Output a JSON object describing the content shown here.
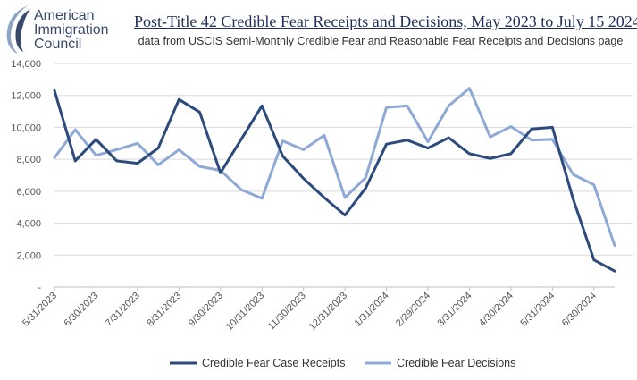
{
  "logo": {
    "name": "American Immigration Council",
    "line1": "American",
    "line2": "Immigration",
    "line3": "Council",
    "color": "#3a4a6e"
  },
  "chart_data": {
    "type": "line",
    "title": "Post-Title 42 Credible Fear Receipts and Decisions, May 2023 to July 15 2024",
    "subtitle": "data from USCIS Semi-Monthly Credible Fear and Reasonable Fear Receipts and Decisions page",
    "xlabel": "",
    "ylabel": "",
    "ylim": [
      0,
      14000
    ],
    "yticks": [
      0,
      2000,
      4000,
      6000,
      8000,
      10000,
      12000,
      14000
    ],
    "ytick_labels": [
      "-",
      "2,000",
      "4,000",
      "6,000",
      "8,000",
      "10,000",
      "12,000",
      "14,000"
    ],
    "xtick_labels": [
      "5/31/2023",
      "6/30/2023",
      "7/31/2023",
      "8/31/2023",
      "9/30/2023",
      "10/31/2023",
      "11/30/2023",
      "12/31/2023",
      "1/31/2024",
      "2/29/2024",
      "3/31/2024",
      "4/30/2024",
      "5/31/2024",
      "6/30/2024"
    ],
    "grid": true,
    "legend_position": "bottom",
    "series": [
      {
        "name": "Credible Fear Case Receipts",
        "color": "#2c4a7c",
        "values": [
          12300,
          7900,
          9250,
          7900,
          7750,
          8700,
          11750,
          10950,
          7150,
          9250,
          11350,
          8200,
          6800,
          5600,
          4500,
          6200,
          8950,
          9200,
          8700,
          9350,
          8350,
          8050,
          8350,
          9900,
          10000,
          5500,
          1700,
          1000
        ]
      },
      {
        "name": "Credible Fear Decisions",
        "color": "#8fa9d6",
        "values": [
          8100,
          9850,
          8250,
          8600,
          9000,
          7650,
          8600,
          7550,
          7300,
          6100,
          5550,
          9150,
          8600,
          9500,
          5600,
          6850,
          11250,
          11350,
          9100,
          11350,
          12450,
          9400,
          10050,
          9200,
          9250,
          7050,
          6400,
          2600
        ]
      }
    ]
  }
}
